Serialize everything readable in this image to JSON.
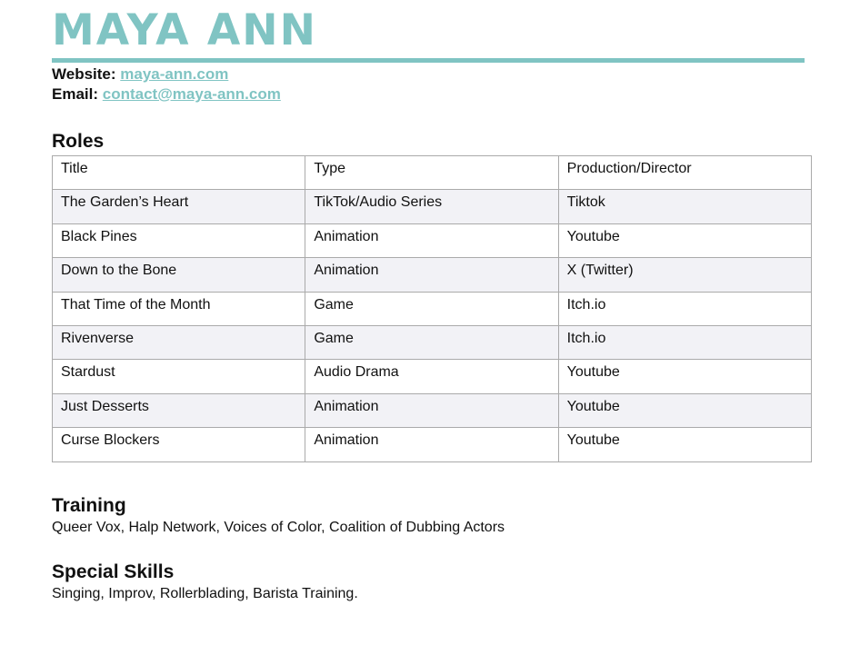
{
  "header": {
    "name": "MAYA ANN",
    "accent_color": "#80c4c3"
  },
  "contact": {
    "website_label": "Website:",
    "website": "maya-ann.com",
    "email_label": "Email:",
    "email": "contact@maya-ann.com"
  },
  "roles": {
    "heading": "Roles",
    "columns": [
      "Title",
      "Type",
      "Production/Director"
    ],
    "rows": [
      [
        "The Garden’s Heart",
        "TikTok/Audio Series",
        "Tiktok"
      ],
      [
        "Black Pines",
        "Animation",
        "Youtube"
      ],
      [
        "Down to the Bone",
        "Animation",
        "X (Twitter)"
      ],
      [
        "That Time of the Month",
        "Game",
        "Itch.io"
      ],
      [
        "Rivenverse",
        "Game",
        "Itch.io"
      ],
      [
        "Stardust",
        "Audio Drama",
        "Youtube"
      ],
      [
        "Just Desserts",
        "Animation",
        "Youtube"
      ],
      [
        "Curse Blockers",
        "Animation",
        "Youtube"
      ]
    ]
  },
  "training": {
    "heading": "Training",
    "text": "Queer Vox, Halp Network, Voices of Color, Coalition of Dubbing Actors"
  },
  "skills": {
    "heading": "Special Skills",
    "text": "Singing, Improv, Rollerblading, Barista Training."
  }
}
